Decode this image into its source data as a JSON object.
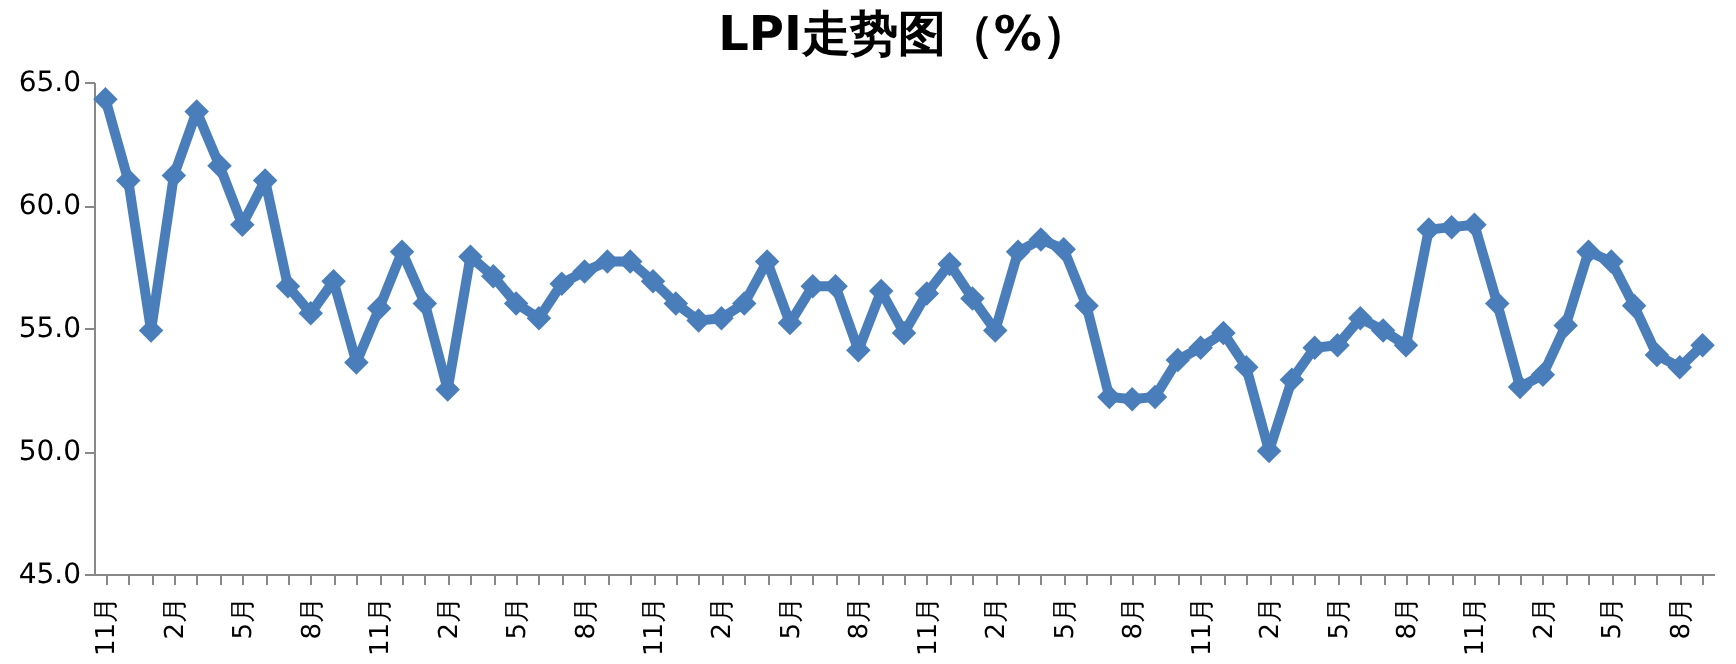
{
  "chart_data": {
    "type": "line",
    "title": "LPI走势图（%）",
    "categories": [
      "11月",
      null,
      null,
      "2月",
      null,
      null,
      "5月",
      null,
      null,
      "8月",
      null,
      null,
      "11月",
      null,
      null,
      "2月",
      null,
      null,
      "5月",
      null,
      null,
      "8月",
      null,
      null,
      "11月",
      null,
      null,
      "2月",
      null,
      null,
      "5月",
      null,
      null,
      "8月",
      null,
      null,
      "11月",
      null,
      null,
      "2月",
      null,
      null,
      "5月",
      null,
      null,
      "8月",
      null,
      null,
      "11月",
      null,
      null,
      "2月",
      null,
      null,
      "5月",
      null,
      null,
      "8月",
      null,
      null,
      "11月",
      null,
      null,
      "2月",
      null,
      null,
      "5月",
      null,
      null,
      "8月",
      null
    ],
    "series": [
      {
        "color": "#4a7ebb",
        "values": [
          64.3,
          61.0,
          54.9,
          61.2,
          63.8,
          61.6,
          59.2,
          61.0,
          56.7,
          55.6,
          56.9,
          53.6,
          55.8,
          58.1,
          56.0,
          52.5,
          57.9,
          57.1,
          56.0,
          55.4,
          56.8,
          57.3,
          57.7,
          57.7,
          56.9,
          56.0,
          55.3,
          55.4,
          56.0,
          57.7,
          55.2,
          56.7,
          56.7,
          54.1,
          56.5,
          54.8,
          56.4,
          57.6,
          56.2,
          54.9,
          58.1,
          58.6,
          58.2,
          55.9,
          52.2,
          52.1,
          52.2,
          53.7,
          54.2,
          54.8,
          53.4,
          50.0,
          52.9,
          54.2,
          54.3,
          55.4,
          54.9,
          54.3,
          59.0,
          59.1,
          59.2,
          56.0,
          52.6,
          53.1,
          55.1,
          58.1,
          57.7,
          55.9,
          53.9,
          53.4,
          54.3
        ]
      }
    ],
    "ylim": [
      45,
      65
    ],
    "yticks": [
      {
        "value": 45,
        "label": "45.0"
      },
      {
        "value": 50,
        "label": "50.0"
      },
      {
        "value": 55,
        "label": "55.0"
      },
      {
        "value": 60,
        "label": "60.0"
      },
      {
        "value": 65,
        "label": "65.0"
      }
    ],
    "grid": false,
    "marker": "diamond",
    "line_style": "solid"
  }
}
